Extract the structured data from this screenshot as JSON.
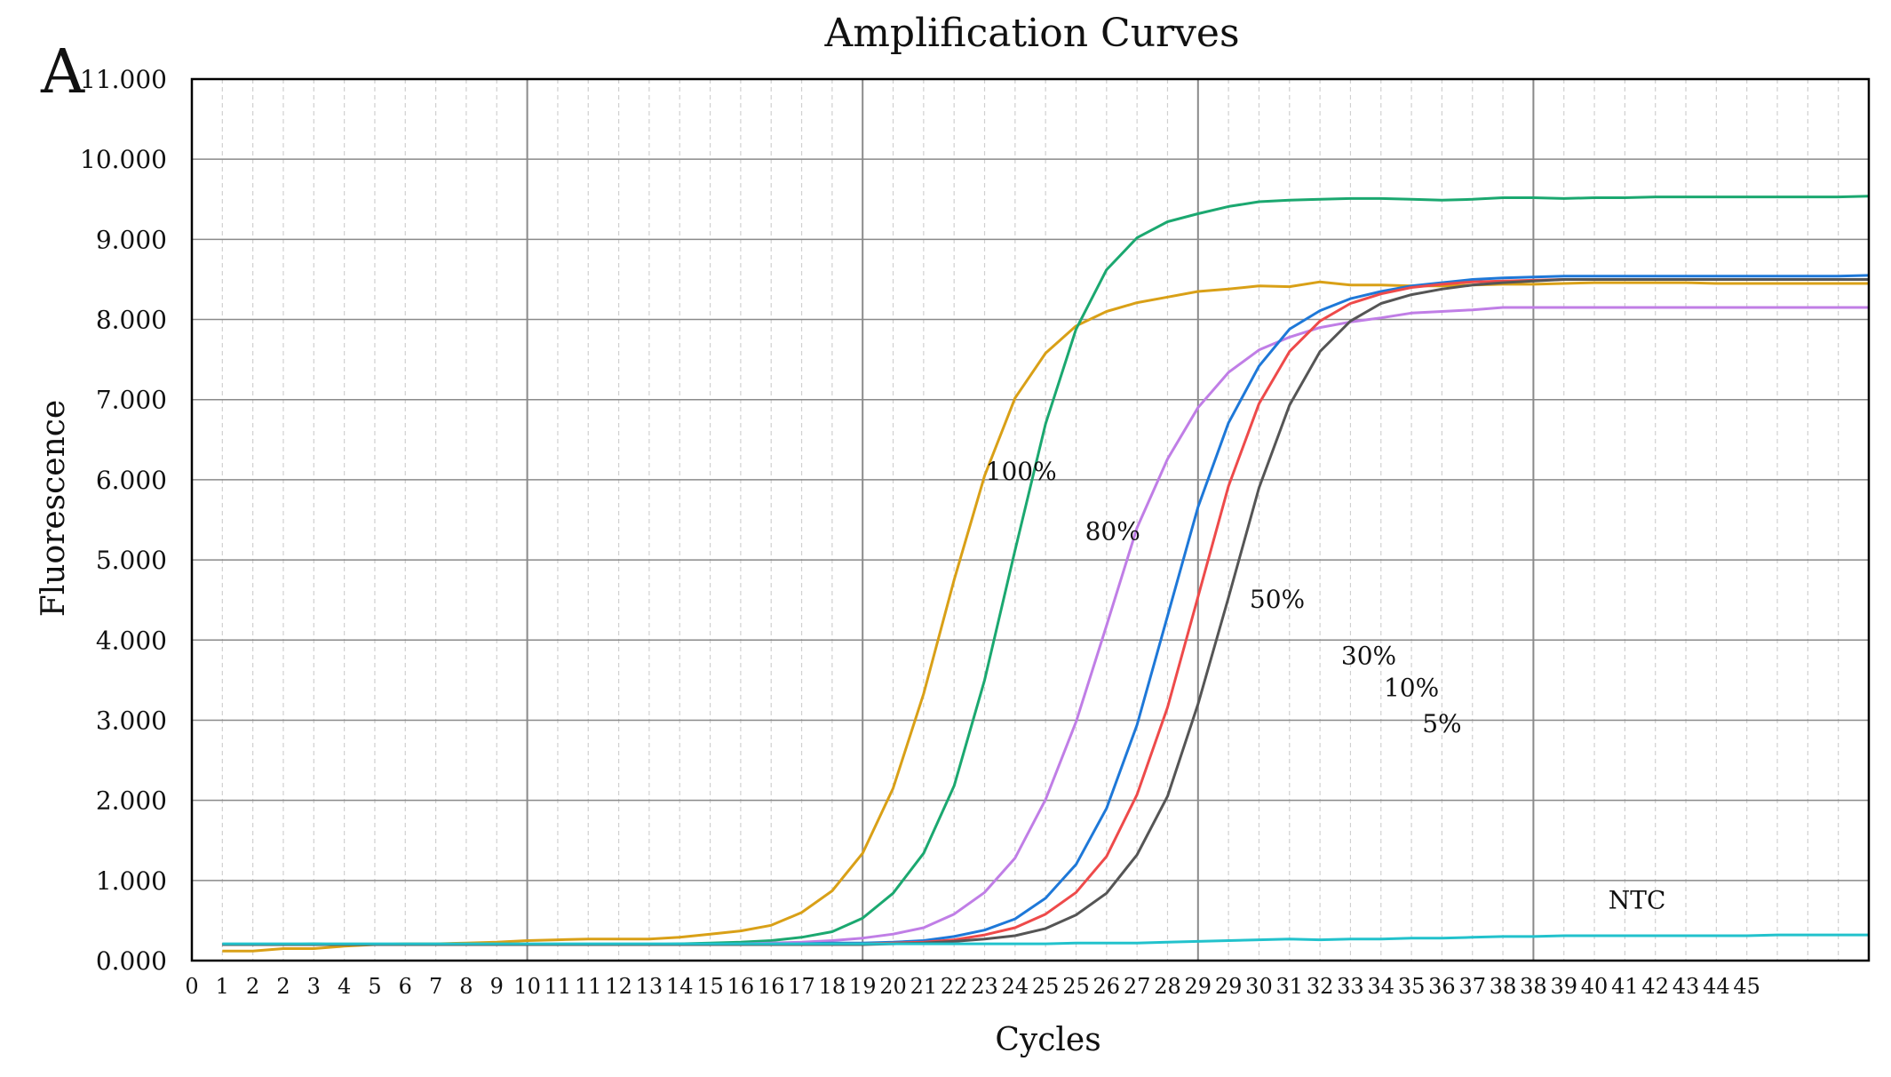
{
  "chart_data": {
    "type": "line",
    "title": "Amplification Curves",
    "panel_label": "A",
    "xlabel": "Cycles",
    "ylabel": "Fluorescence",
    "ylim": [
      0,
      11
    ],
    "xlim": [
      0,
      55
    ],
    "yticks": [
      "0.000",
      "1.000",
      "2.000",
      "3.000",
      "4.000",
      "5.000",
      "6.000",
      "7.000",
      "8.000",
      "9.000",
      "10.000",
      "11.000"
    ],
    "xticks": [
      "0",
      "1",
      "2",
      "2",
      "3",
      "4",
      "5",
      "6",
      "7",
      "8",
      "9",
      "10",
      "11",
      "11",
      "12",
      "13",
      "14",
      "15",
      "16",
      "16",
      "17",
      "18",
      "19",
      "20",
      "21",
      "22",
      "23",
      "24",
      "25",
      "25",
      "26",
      "27",
      "28",
      "29",
      "29",
      "30",
      "31",
      "32",
      "33",
      "34",
      "35",
      "36",
      "37",
      "38",
      "38",
      "39",
      "40",
      "41",
      "42",
      "43",
      "44",
      "45"
    ],
    "grid": true,
    "x": [
      1,
      2,
      3,
      4,
      5,
      6,
      7,
      8,
      9,
      10,
      11,
      12,
      13,
      14,
      15,
      16,
      17,
      18,
      19,
      20,
      21,
      22,
      23,
      24,
      25,
      26,
      27,
      28,
      29,
      30,
      31,
      32,
      33,
      34,
      35,
      36,
      37,
      38,
      39,
      40,
      41,
      42,
      43,
      44,
      45,
      46,
      47,
      48,
      49,
      50,
      51,
      52,
      53,
      54,
      55
    ],
    "series": [
      {
        "name": "100%",
        "color": "#D9A017",
        "values": [
          0.12,
          0.12,
          0.15,
          0.15,
          0.18,
          0.2,
          0.21,
          0.21,
          0.22,
          0.23,
          0.25,
          0.26,
          0.27,
          0.27,
          0.27,
          0.29,
          0.33,
          0.37,
          0.44,
          0.6,
          0.87,
          1.34,
          2.15,
          3.33,
          4.75,
          6.05,
          7.02,
          7.58,
          7.92,
          8.1,
          8.21,
          8.28,
          8.35,
          8.38,
          8.42,
          8.41,
          8.47,
          8.43,
          8.43,
          8.42,
          8.42,
          8.43,
          8.44,
          8.44,
          8.45,
          8.46,
          8.46,
          8.46,
          8.46,
          8.45,
          8.45,
          8.45,
          8.45,
          8.45,
          8.45
        ]
      },
      {
        "name": "80%",
        "color": "#1BA870",
        "values": [
          0.2,
          0.2,
          0.2,
          0.21,
          0.2,
          0.2,
          0.2,
          0.2,
          0.2,
          0.2,
          0.2,
          0.2,
          0.2,
          0.2,
          0.2,
          0.21,
          0.22,
          0.23,
          0.25,
          0.29,
          0.36,
          0.53,
          0.84,
          1.34,
          2.18,
          3.5,
          5.12,
          6.7,
          7.88,
          8.62,
          9.02,
          9.22,
          9.32,
          9.41,
          9.47,
          9.49,
          9.5,
          9.51,
          9.51,
          9.5,
          9.49,
          9.5,
          9.52,
          9.52,
          9.51,
          9.52,
          9.52,
          9.53,
          9.53,
          9.53,
          9.53,
          9.53,
          9.53,
          9.53,
          9.54
        ]
      },
      {
        "name": "50%",
        "color": "#C07EE6",
        "values": [
          0.2,
          0.2,
          0.2,
          0.2,
          0.2,
          0.2,
          0.2,
          0.2,
          0.2,
          0.2,
          0.2,
          0.2,
          0.2,
          0.2,
          0.2,
          0.2,
          0.2,
          0.21,
          0.22,
          0.23,
          0.25,
          0.28,
          0.33,
          0.41,
          0.58,
          0.85,
          1.28,
          2.01,
          2.98,
          4.18,
          5.4,
          6.26,
          6.9,
          7.34,
          7.62,
          7.78,
          7.9,
          7.97,
          8.02,
          8.08,
          8.1,
          8.12,
          8.15,
          8.15,
          8.15,
          8.15,
          8.15,
          8.15,
          8.15,
          8.15,
          8.15,
          8.15,
          8.15,
          8.15,
          8.15
        ]
      },
      {
        "name": "30%",
        "color": "#1E78D8",
        "values": [
          0.2,
          0.2,
          0.2,
          0.2,
          0.2,
          0.2,
          0.2,
          0.2,
          0.2,
          0.2,
          0.2,
          0.2,
          0.2,
          0.2,
          0.2,
          0.2,
          0.2,
          0.2,
          0.2,
          0.21,
          0.22,
          0.22,
          0.23,
          0.25,
          0.3,
          0.38,
          0.52,
          0.78,
          1.2,
          1.9,
          2.94,
          4.3,
          5.66,
          6.71,
          7.42,
          7.88,
          8.11,
          8.26,
          8.35,
          8.42,
          8.46,
          8.5,
          8.52,
          8.53,
          8.54,
          8.54,
          8.54,
          8.54,
          8.54,
          8.54,
          8.54,
          8.54,
          8.54,
          8.54,
          8.55
        ]
      },
      {
        "name": "10%",
        "color": "#EE4A4A",
        "values": [
          0.2,
          0.2,
          0.2,
          0.2,
          0.2,
          0.2,
          0.2,
          0.2,
          0.2,
          0.2,
          0.2,
          0.2,
          0.2,
          0.2,
          0.2,
          0.2,
          0.2,
          0.2,
          0.2,
          0.2,
          0.21,
          0.21,
          0.22,
          0.23,
          0.26,
          0.32,
          0.41,
          0.58,
          0.85,
          1.3,
          2.07,
          3.16,
          4.54,
          5.92,
          6.95,
          7.6,
          7.98,
          8.2,
          8.32,
          8.4,
          8.44,
          8.47,
          8.48,
          8.49,
          8.5,
          8.5,
          8.5,
          8.5,
          8.5,
          8.5,
          8.5,
          8.5,
          8.5,
          8.5,
          8.5
        ]
      },
      {
        "name": "5%",
        "color": "#555555",
        "values": [
          0.2,
          0.2,
          0.2,
          0.2,
          0.2,
          0.2,
          0.2,
          0.2,
          0.2,
          0.2,
          0.2,
          0.2,
          0.2,
          0.2,
          0.2,
          0.2,
          0.2,
          0.2,
          0.2,
          0.2,
          0.2,
          0.2,
          0.21,
          0.22,
          0.24,
          0.27,
          0.31,
          0.4,
          0.57,
          0.84,
          1.32,
          2.05,
          3.2,
          4.53,
          5.9,
          6.93,
          7.6,
          7.98,
          8.2,
          8.31,
          8.38,
          8.43,
          8.46,
          8.48,
          8.5,
          8.5,
          8.5,
          8.5,
          8.5,
          8.5,
          8.5,
          8.5,
          8.5,
          8.5,
          8.5
        ]
      },
      {
        "name": "NTC",
        "color": "#22C2CC",
        "values": [
          0.21,
          0.21,
          0.21,
          0.21,
          0.21,
          0.21,
          0.21,
          0.21,
          0.21,
          0.21,
          0.21,
          0.21,
          0.21,
          0.21,
          0.21,
          0.21,
          0.21,
          0.21,
          0.21,
          0.21,
          0.21,
          0.21,
          0.21,
          0.21,
          0.21,
          0.21,
          0.21,
          0.21,
          0.22,
          0.22,
          0.22,
          0.23,
          0.24,
          0.25,
          0.26,
          0.27,
          0.26,
          0.27,
          0.27,
          0.28,
          0.28,
          0.29,
          0.3,
          0.3,
          0.31,
          0.31,
          0.31,
          0.31,
          0.31,
          0.31,
          0.31,
          0.32,
          0.32,
          0.32,
          0.32
        ]
      }
    ],
    "annotations": [
      "100%",
      "80%",
      "50%",
      "30%",
      "10%",
      "5%",
      "NTC"
    ]
  }
}
